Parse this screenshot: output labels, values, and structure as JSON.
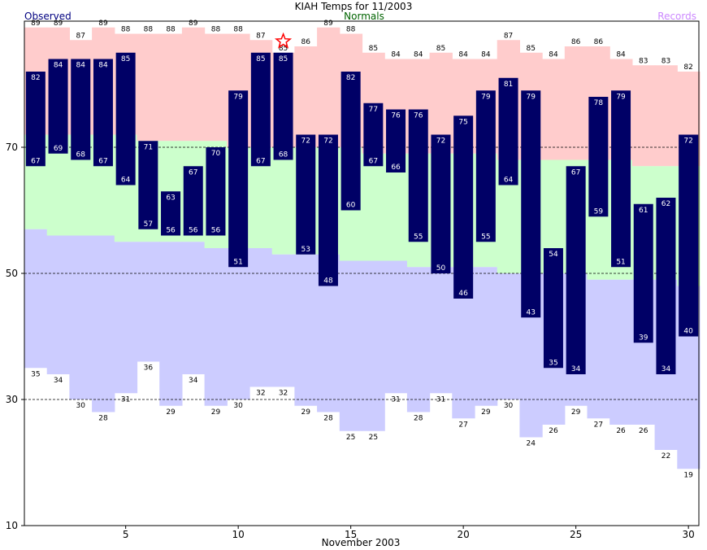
{
  "chart_data": {
    "type": "bar",
    "title": "KIAH Temps for 11/2003",
    "xlabel": "November 2003",
    "legend": {
      "observed": "Observed",
      "normals": "Normals",
      "records": "Records"
    },
    "x_ticks": [
      5,
      10,
      15,
      20,
      25,
      30
    ],
    "y_ticks": [
      10,
      30,
      50,
      70
    ],
    "ylim": [
      10,
      90
    ],
    "xlim": [
      0.5,
      30.5
    ],
    "grid_lines_y": [
      30,
      50,
      70
    ],
    "days": [
      1,
      2,
      3,
      4,
      5,
      6,
      7,
      8,
      9,
      10,
      11,
      12,
      13,
      14,
      15,
      16,
      17,
      18,
      19,
      20,
      21,
      22,
      23,
      24,
      25,
      26,
      27,
      28,
      29,
      30
    ],
    "observed_high": [
      82,
      84,
      84,
      84,
      85,
      71,
      63,
      67,
      70,
      79,
      85,
      85,
      72,
      72,
      82,
      77,
      76,
      76,
      72,
      75,
      79,
      81,
      79,
      54,
      67,
      78,
      79,
      61,
      62,
      72
    ],
    "observed_low": [
      67,
      69,
      68,
      67,
      64,
      57,
      56,
      56,
      56,
      51,
      67,
      68,
      53,
      48,
      60,
      67,
      66,
      55,
      50,
      46,
      55,
      64,
      43,
      35,
      34,
      59,
      51,
      39,
      34,
      40
    ],
    "normal_high": [
      72,
      72,
      72,
      72,
      72,
      71,
      71,
      71,
      71,
      70,
      70,
      70,
      70,
      70,
      70,
      69,
      69,
      69,
      69,
      69,
      69,
      68,
      68,
      68,
      68,
      68,
      68,
      67,
      67,
      67
    ],
    "normal_low": [
      57,
      56,
      56,
      56,
      55,
      55,
      55,
      55,
      54,
      54,
      54,
      53,
      53,
      53,
      52,
      52,
      52,
      51,
      51,
      51,
      51,
      50,
      50,
      50,
      50,
      49,
      49,
      49,
      49,
      48
    ],
    "record_high": [
      89,
      89,
      87,
      89,
      88,
      88,
      88,
      89,
      88,
      88,
      87,
      85,
      86,
      89,
      88,
      85,
      84,
      84,
      85,
      84,
      84,
      87,
      85,
      84,
      86,
      86,
      84,
      83,
      83,
      82
    ],
    "record_low": [
      35,
      34,
      30,
      28,
      31,
      36,
      29,
      34,
      29,
      30,
      32,
      32,
      29,
      28,
      25,
      25,
      31,
      28,
      31,
      27,
      29,
      30,
      24,
      26,
      29,
      27,
      26,
      26,
      22,
      19
    ],
    "record_markers": [
      {
        "day": 12,
        "type": "record-high"
      }
    ],
    "colors": {
      "observed": "#000066",
      "normal_band": "#ccffcc",
      "record_high_band": "#ffcccc",
      "record_low_band": "#ccccff",
      "observed_label": "#000080",
      "normals_label": "#006400",
      "records_label": "#cc88ff",
      "record_marker": "#ff0000"
    }
  }
}
